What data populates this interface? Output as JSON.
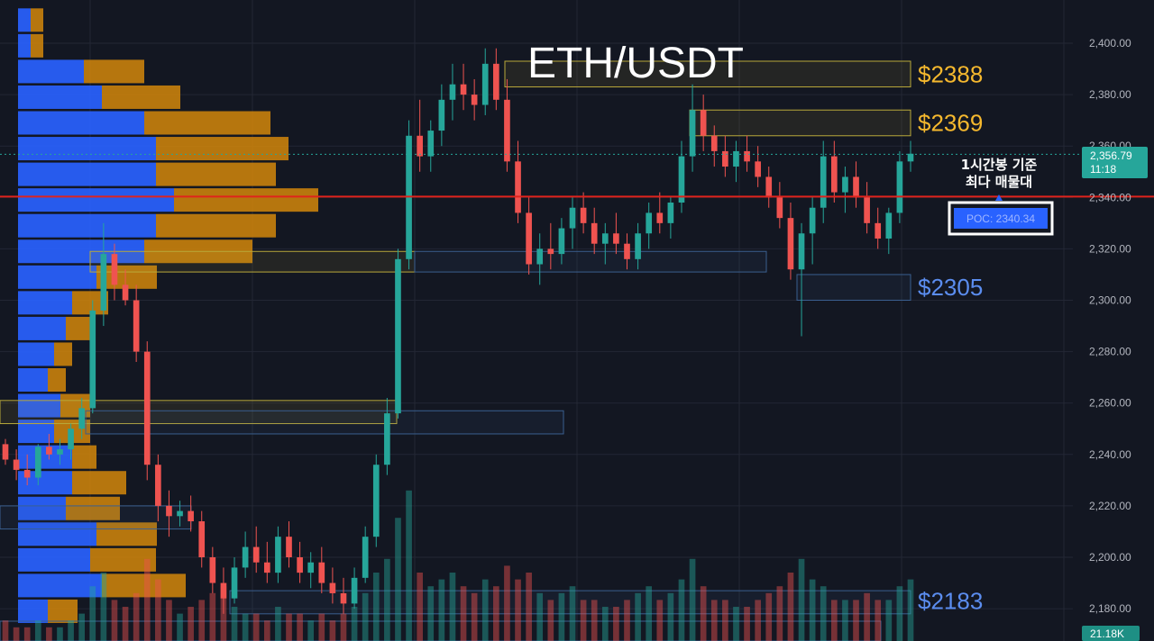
{
  "title": "ETH/USDT",
  "colors": {
    "background": "#131722",
    "grid": "#232734",
    "up": "#26a69a",
    "down": "#ef5350",
    "profile_buy": "#2962ff",
    "profile_sell": "#d4870a",
    "poc_line": "#e0231c",
    "zone_yellow": "#b9a93a",
    "zone_blue": "#3a5f8f",
    "label_yellow": "#f5b82e",
    "label_blue": "#5b8def",
    "axis_text": "#b2b5be",
    "current_price_bg": "#26a69a",
    "poc_box_bg": "#2962ff"
  },
  "chart_data": {
    "type": "candlestick",
    "title": "ETH/USDT",
    "y_axis": {
      "ticks": [
        2180,
        2200,
        2220,
        2240,
        2260,
        2280,
        2300,
        2320,
        2340,
        2360,
        2380,
        2400
      ],
      "tick_labels": [
        "2,180.00",
        "2,200.00",
        "2,220.00",
        "2,240.00",
        "2,260.00",
        "2,280.00",
        "2,300.00",
        "2,320.00",
        "2,340.00",
        "2,360.00",
        "2,380.00",
        "2,400.00"
      ],
      "range": [
        2176,
        2414
      ]
    },
    "current_price": {
      "value": 2356.79,
      "label": "2,356.79",
      "countdown": "11:18"
    },
    "volume_label": "21.18K",
    "poc": {
      "value": 2340.34,
      "label": "POC: 2340.34",
      "caption_line1": "1시간봉 기준",
      "caption_line2": "최다 매물대"
    },
    "level_labels": [
      {
        "text": "$2388",
        "price": 2388,
        "color": "yellow"
      },
      {
        "text": "$2369",
        "price": 2369,
        "color": "yellow"
      },
      {
        "text": "$2305",
        "price": 2305,
        "color": "blue"
      },
      {
        "text": "$2183",
        "price": 2183,
        "color": "blue"
      }
    ],
    "zones": [
      {
        "color": "yellow",
        "top": 2393,
        "bottom": 2383
      },
      {
        "color": "yellow",
        "top": 2374,
        "bottom": 2364
      },
      {
        "color": "yellow",
        "top": 2319,
        "bottom": 2311
      },
      {
        "color": "blue",
        "top": 2319,
        "bottom": 2311
      },
      {
        "color": "blue",
        "top": 2310,
        "bottom": 2300
      },
      {
        "color": "yellow",
        "top": 2261,
        "bottom": 2252
      },
      {
        "color": "blue",
        "top": 2257,
        "bottom": 2248
      },
      {
        "color": "blue",
        "top": 2220,
        "bottom": 2211
      },
      {
        "color": "blue",
        "top": 2187,
        "bottom": 2178
      }
    ],
    "volume_profile": [
      {
        "price": 2409,
        "buy": 14,
        "sell": 14
      },
      {
        "price": 2399,
        "buy": 14,
        "sell": 14
      },
      {
        "price": 2389,
        "buy": 73,
        "sell": 67
      },
      {
        "price": 2379,
        "buy": 93,
        "sell": 87
      },
      {
        "price": 2369,
        "buy": 140,
        "sell": 140
      },
      {
        "price": 2359,
        "buy": 153,
        "sell": 147
      },
      {
        "price": 2349,
        "buy": 153,
        "sell": 133
      },
      {
        "price": 2339,
        "buy": 173,
        "sell": 160
      },
      {
        "price": 2329,
        "buy": 153,
        "sell": 133
      },
      {
        "price": 2319,
        "buy": 140,
        "sell": 120
      },
      {
        "price": 2309,
        "buy": 87,
        "sell": 67
      },
      {
        "price": 2299,
        "buy": 60,
        "sell": 40
      },
      {
        "price": 2289,
        "buy": 53,
        "sell": 33
      },
      {
        "price": 2279,
        "buy": 40,
        "sell": 20
      },
      {
        "price": 2269,
        "buy": 33,
        "sell": 20
      },
      {
        "price": 2259,
        "buy": 47,
        "sell": 33
      },
      {
        "price": 2249,
        "buy": 40,
        "sell": 40
      },
      {
        "price": 2239,
        "buy": 60,
        "sell": 27
      },
      {
        "price": 2229,
        "buy": 60,
        "sell": 60
      },
      {
        "price": 2219,
        "buy": 53,
        "sell": 60
      },
      {
        "price": 2209,
        "buy": 87,
        "sell": 67
      },
      {
        "price": 2199,
        "buy": 80,
        "sell": 73
      },
      {
        "price": 2189,
        "buy": 93,
        "sell": 93
      },
      {
        "price": 2179,
        "buy": 33,
        "sell": 33
      }
    ],
    "candles": [
      [
        2244,
        2246,
        2236,
        2238
      ],
      [
        2238,
        2242,
        2230,
        2234
      ],
      [
        2234,
        2240,
        2228,
        2231
      ],
      [
        2231,
        2244,
        2228,
        2243
      ],
      [
        2243,
        2248,
        2238,
        2240
      ],
      [
        2240,
        2246,
        2236,
        2242
      ],
      [
        2242,
        2252,
        2238,
        2250
      ],
      [
        2250,
        2262,
        2246,
        2258
      ],
      [
        2258,
        2300,
        2256,
        2296
      ],
      [
        2296,
        2330,
        2290,
        2318
      ],
      [
        2318,
        2322,
        2300,
        2306
      ],
      [
        2306,
        2312,
        2298,
        2300
      ],
      [
        2300,
        2306,
        2276,
        2280
      ],
      [
        2280,
        2284,
        2230,
        2236
      ],
      [
        2236,
        2240,
        2214,
        2220
      ],
      [
        2220,
        2226,
        2208,
        2216
      ],
      [
        2216,
        2222,
        2212,
        2218
      ],
      [
        2218,
        2224,
        2210,
        2214
      ],
      [
        2214,
        2218,
        2196,
        2200
      ],
      [
        2200,
        2204,
        2186,
        2190
      ],
      [
        2190,
        2196,
        2178,
        2184
      ],
      [
        2184,
        2200,
        2182,
        2196
      ],
      [
        2196,
        2210,
        2192,
        2204
      ],
      [
        2204,
        2212,
        2194,
        2198
      ],
      [
        2198,
        2206,
        2190,
        2194
      ],
      [
        2194,
        2212,
        2190,
        2208
      ],
      [
        2208,
        2214,
        2196,
        2200
      ],
      [
        2200,
        2206,
        2190,
        2194
      ],
      [
        2194,
        2202,
        2188,
        2198
      ],
      [
        2198,
        2204,
        2186,
        2190
      ],
      [
        2190,
        2196,
        2182,
        2186
      ],
      [
        2186,
        2192,
        2178,
        2182
      ],
      [
        2182,
        2196,
        2180,
        2192
      ],
      [
        2192,
        2212,
        2190,
        2208
      ],
      [
        2208,
        2240,
        2204,
        2236
      ],
      [
        2236,
        2262,
        2232,
        2256
      ],
      [
        2256,
        2320,
        2254,
        2316
      ],
      [
        2316,
        2370,
        2312,
        2364
      ],
      [
        2364,
        2378,
        2350,
        2356
      ],
      [
        2356,
        2370,
        2350,
        2366
      ],
      [
        2366,
        2384,
        2360,
        2378
      ],
      [
        2378,
        2392,
        2370,
        2384
      ],
      [
        2384,
        2392,
        2374,
        2380
      ],
      [
        2380,
        2386,
        2370,
        2376
      ],
      [
        2376,
        2398,
        2372,
        2392
      ],
      [
        2392,
        2398,
        2374,
        2378
      ],
      [
        2378,
        2386,
        2350,
        2354
      ],
      [
        2354,
        2362,
        2330,
        2334
      ],
      [
        2334,
        2340,
        2310,
        2314
      ],
      [
        2314,
        2326,
        2306,
        2320
      ],
      [
        2320,
        2330,
        2312,
        2318
      ],
      [
        2318,
        2332,
        2314,
        2328
      ],
      [
        2328,
        2340,
        2320,
        2336
      ],
      [
        2336,
        2342,
        2326,
        2330
      ],
      [
        2330,
        2336,
        2318,
        2322
      ],
      [
        2322,
        2330,
        2314,
        2326
      ],
      [
        2326,
        2334,
        2318,
        2322
      ],
      [
        2322,
        2326,
        2312,
        2316
      ],
      [
        2316,
        2330,
        2312,
        2326
      ],
      [
        2326,
        2338,
        2320,
        2334
      ],
      [
        2334,
        2342,
        2326,
        2330
      ],
      [
        2330,
        2340,
        2324,
        2338
      ],
      [
        2338,
        2362,
        2334,
        2356
      ],
      [
        2356,
        2384,
        2350,
        2374
      ],
      [
        2374,
        2380,
        2358,
        2364
      ],
      [
        2364,
        2368,
        2352,
        2358
      ],
      [
        2358,
        2364,
        2348,
        2352
      ],
      [
        2352,
        2362,
        2346,
        2358
      ],
      [
        2358,
        2364,
        2350,
        2354
      ],
      [
        2354,
        2360,
        2344,
        2348
      ],
      [
        2348,
        2352,
        2336,
        2340
      ],
      [
        2340,
        2346,
        2328,
        2332
      ],
      [
        2332,
        2338,
        2308,
        2312
      ],
      [
        2312,
        2330,
        2286,
        2326
      ],
      [
        2326,
        2340,
        2314,
        2336
      ],
      [
        2336,
        2362,
        2330,
        2356
      ],
      [
        2356,
        2362,
        2338,
        2342
      ],
      [
        2342,
        2352,
        2334,
        2348
      ],
      [
        2348,
        2354,
        2336,
        2340
      ],
      [
        2340,
        2346,
        2326,
        2330
      ],
      [
        2330,
        2336,
        2320,
        2324
      ],
      [
        2324,
        2336,
        2318,
        2334
      ],
      [
        2334,
        2358,
        2330,
        2354
      ],
      [
        2354,
        2362,
        2350,
        2357
      ]
    ],
    "volumes": [
      3,
      2,
      2,
      3,
      2,
      2,
      3,
      4,
      8,
      10,
      6,
      5,
      7,
      12,
      9,
      6,
      4,
      5,
      6,
      7,
      8,
      5,
      4,
      4,
      3,
      5,
      4,
      4,
      3,
      4,
      3,
      4,
      5,
      7,
      10,
      12,
      18,
      22,
      10,
      8,
      9,
      10,
      8,
      7,
      9,
      8,
      11,
      9,
      10,
      7,
      6,
      7,
      8,
      6,
      6,
      5,
      5,
      6,
      7,
      8,
      6,
      7,
      9,
      12,
      8,
      6,
      6,
      5,
      5,
      6,
      7,
      8,
      10,
      12,
      9,
      8,
      6,
      6,
      6,
      7,
      6,
      6,
      8,
      9
    ]
  }
}
